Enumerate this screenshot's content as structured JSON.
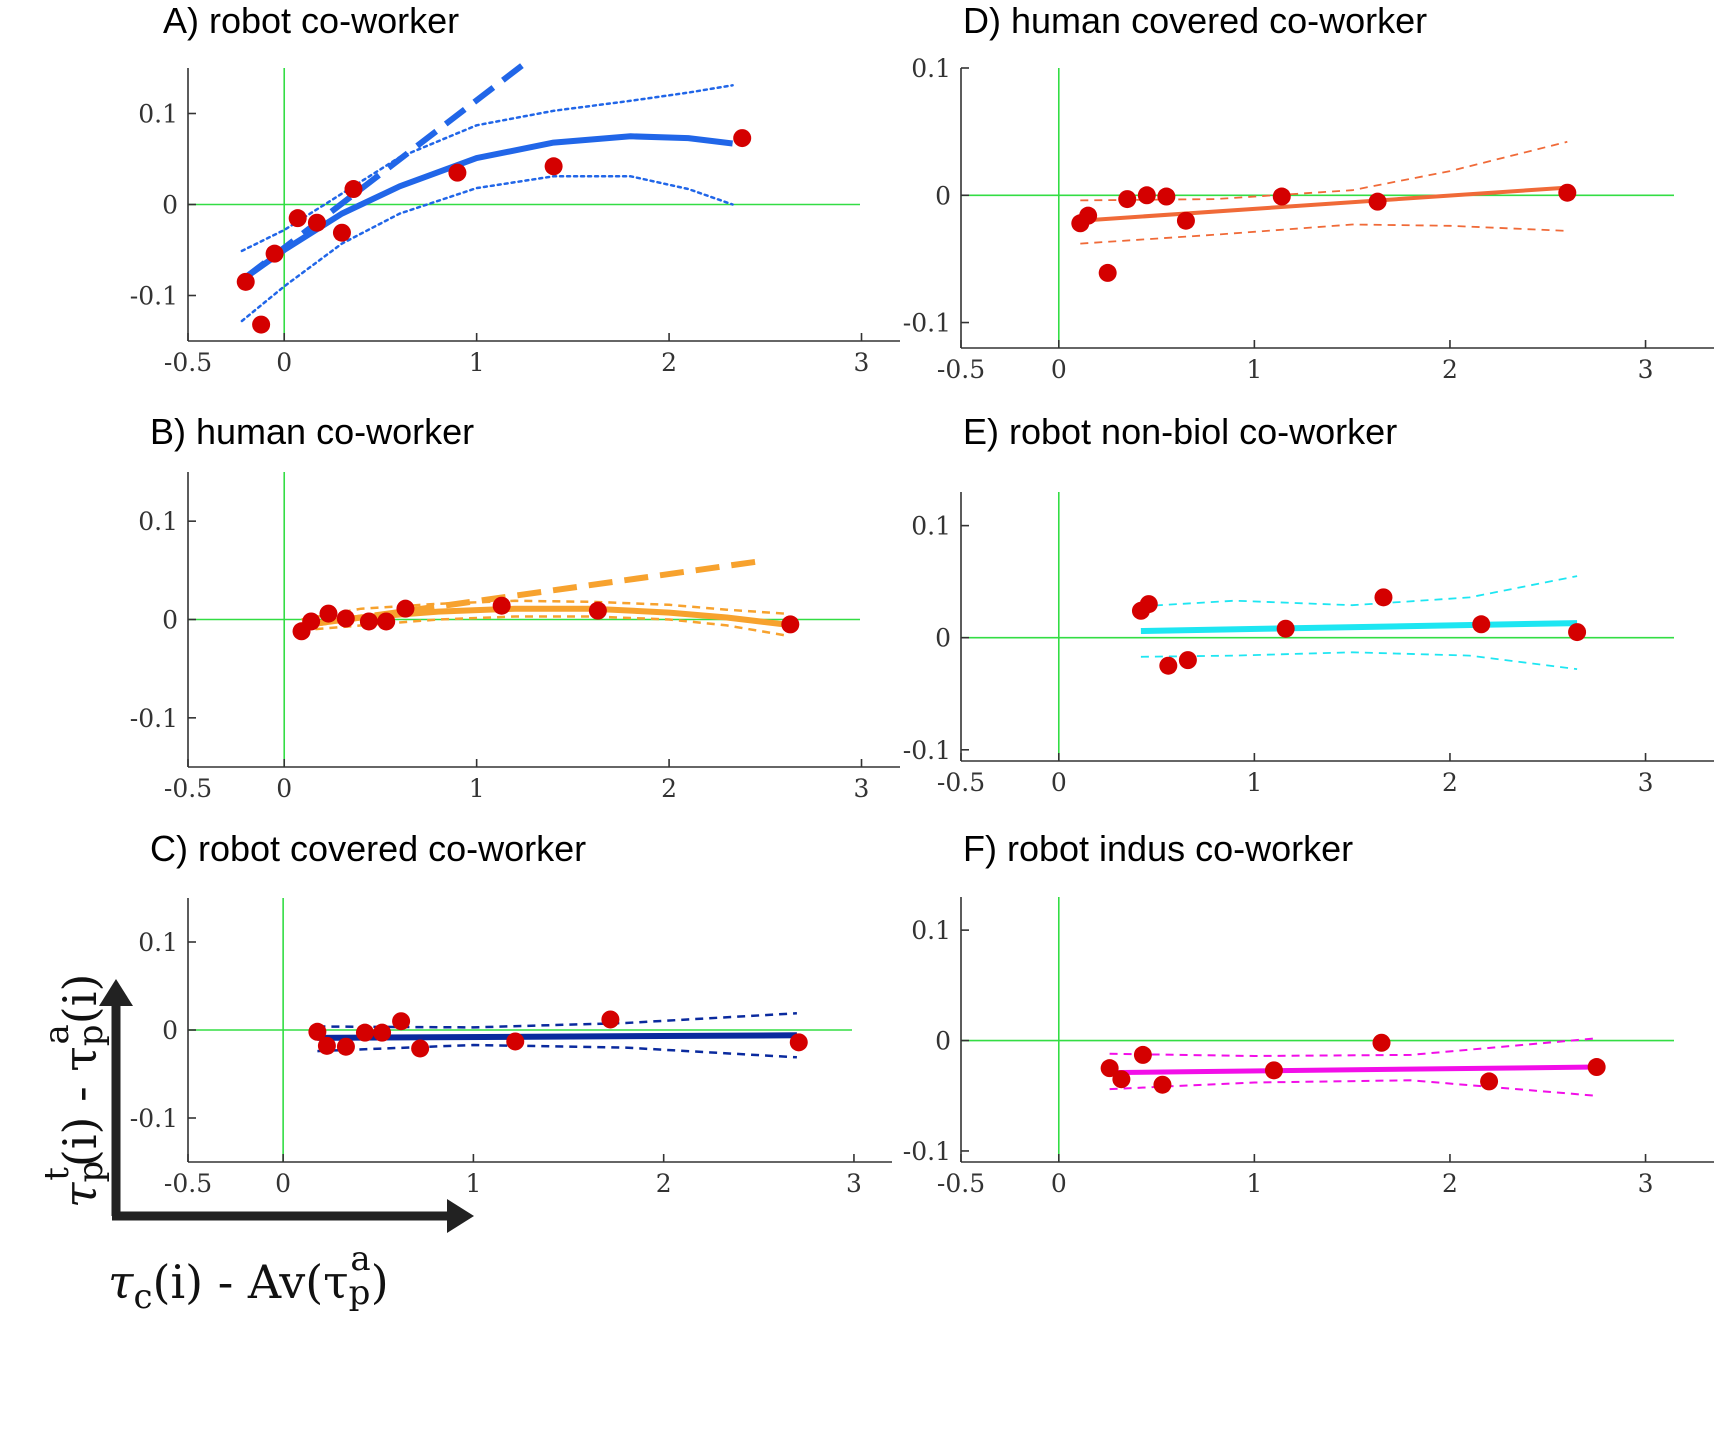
{
  "colors": {
    "point": "#d40000",
    "zero_line": "#33dd44",
    "axis": "#333333",
    "arrow": "#222222"
  },
  "axes_legend": {
    "x_label": {
      "base": "τ",
      "sub": "c",
      "rest": "(i) - Av(τ",
      "sub2": "p",
      "sup2": "a",
      "end": ")"
    },
    "y_label": {
      "base": "τ",
      "sub": "p",
      "sup": "t",
      "rest": "(i) - τ",
      "sub2": "p",
      "sup2": "a",
      "end": "(i)"
    }
  },
  "chart_data": [
    {
      "id": "A",
      "type": "scatter",
      "title": "A)   robot co-worker",
      "color": "#2166e8",
      "xlim": [
        -0.5,
        3.2
      ],
      "ylim": [
        -0.15,
        0.15
      ],
      "xticks": [
        -0.5,
        0,
        1,
        2,
        3
      ],
      "xtick_labels": [
        "-0.5",
        "0",
        "1",
        "2",
        "3"
      ],
      "yticks": [
        -0.1,
        0,
        0.1
      ],
      "ytick_labels": [
        "-0.1",
        "0",
        "0.1"
      ],
      "grid": false,
      "points": [
        {
          "x": -0.2,
          "y": -0.085
        },
        {
          "x": -0.12,
          "y": -0.132
        },
        {
          "x": -0.05,
          "y": -0.054
        },
        {
          "x": 0.07,
          "y": -0.015
        },
        {
          "x": 0.17,
          "y": -0.02
        },
        {
          "x": 0.3,
          "y": -0.031
        },
        {
          "x": 0.36,
          "y": 0.017
        },
        {
          "x": 0.9,
          "y": 0.035
        },
        {
          "x": 1.4,
          "y": 0.042
        },
        {
          "x": 2.38,
          "y": 0.073
        }
      ],
      "fit": {
        "style": "solid",
        "width": 6,
        "x": [
          -0.2,
          0.0,
          0.3,
          0.6,
          1.0,
          1.4,
          1.8,
          2.1,
          2.33
        ],
        "y": [
          -0.08,
          -0.05,
          -0.01,
          0.02,
          0.051,
          0.068,
          0.075,
          0.073,
          0.067
        ]
      },
      "ci_upper": {
        "style": "dotted",
        "width": 2.5,
        "x": [
          -0.22,
          0.0,
          0.3,
          0.6,
          1.0,
          1.4,
          1.8,
          2.1,
          2.33
        ],
        "y": [
          -0.051,
          -0.028,
          0.012,
          0.052,
          0.087,
          0.103,
          0.114,
          0.123,
          0.131
        ]
      },
      "ci_lower": {
        "style": "dotted",
        "width": 2.5,
        "x": [
          -0.22,
          0.0,
          0.3,
          0.6,
          1.0,
          1.4,
          1.8,
          2.1,
          2.33
        ],
        "y": [
          -0.128,
          -0.09,
          -0.043,
          -0.01,
          0.018,
          0.031,
          0.031,
          0.017,
          0.0
        ]
      },
      "extrapolation": {
        "style": "dashed",
        "width": 6,
        "x": [
          -0.2,
          1.25
        ],
        "y": [
          -0.08,
          0.155
        ]
      }
    },
    {
      "id": "B",
      "type": "scatter",
      "title": "B)   human co-worker",
      "color": "#f7a22e",
      "xlim": [
        -0.5,
        3.2
      ],
      "ylim": [
        -0.15,
        0.15
      ],
      "xticks": [
        -0.5,
        0,
        1,
        2,
        3
      ],
      "xtick_labels": [
        "-0.5",
        "0",
        "1",
        "2",
        "3"
      ],
      "yticks": [
        -0.1,
        0,
        0.1
      ],
      "ytick_labels": [
        "-0.1",
        "0",
        "0.1"
      ],
      "grid": false,
      "points": [
        {
          "x": 0.09,
          "y": -0.012
        },
        {
          "x": 0.14,
          "y": -0.002
        },
        {
          "x": 0.23,
          "y": 0.006
        },
        {
          "x": 0.32,
          "y": 0.001
        },
        {
          "x": 0.44,
          "y": -0.002
        },
        {
          "x": 0.53,
          "y": -0.002
        },
        {
          "x": 0.63,
          "y": 0.011
        },
        {
          "x": 1.13,
          "y": 0.014
        },
        {
          "x": 1.63,
          "y": 0.009
        },
        {
          "x": 2.63,
          "y": -0.005
        }
      ],
      "fit": {
        "style": "solid",
        "width": 6,
        "x": [
          0.09,
          0.4,
          0.8,
          1.2,
          1.6,
          2.0,
          2.3,
          2.6
        ],
        "y": [
          -0.006,
          0.002,
          0.008,
          0.011,
          0.011,
          0.007,
          0.002,
          -0.005
        ]
      },
      "ci_upper": {
        "style": "dashed",
        "width": 2.5,
        "x": [
          0.09,
          0.4,
          0.8,
          1.2,
          1.6,
          2.0,
          2.3,
          2.6
        ],
        "y": [
          0.0,
          0.011,
          0.016,
          0.019,
          0.018,
          0.015,
          0.01,
          0.006
        ]
      },
      "ci_lower": {
        "style": "dashed",
        "width": 2.5,
        "x": [
          0.09,
          0.4,
          0.8,
          1.2,
          1.6,
          2.0,
          2.3,
          2.6
        ],
        "y": [
          -0.011,
          -0.006,
          0.0,
          0.003,
          0.003,
          0.0,
          -0.006,
          -0.016
        ]
      },
      "extrapolation": {
        "style": "dashed",
        "width": 6,
        "x": [
          0.1,
          2.5
        ],
        "y": [
          -0.006,
          0.06
        ]
      }
    },
    {
      "id": "C",
      "type": "scatter",
      "title": "C)   robot covered co-worker",
      "color": "#0a2a9e",
      "xlim": [
        -0.5,
        3.2
      ],
      "ylim": [
        -0.15,
        0.15
      ],
      "xticks": [
        -0.5,
        0,
        1,
        2,
        3
      ],
      "xtick_labels": [
        "-0.5",
        "0",
        "1",
        "2",
        "3"
      ],
      "yticks": [
        -0.1,
        0,
        0.1
      ],
      "ytick_labels": [
        "-0.1",
        "0",
        "0.1"
      ],
      "grid": false,
      "points": [
        {
          "x": 0.18,
          "y": -0.002
        },
        {
          "x": 0.23,
          "y": -0.018
        },
        {
          "x": 0.33,
          "y": -0.019
        },
        {
          "x": 0.43,
          "y": -0.003
        },
        {
          "x": 0.52,
          "y": -0.003
        },
        {
          "x": 0.62,
          "y": 0.01
        },
        {
          "x": 0.72,
          "y": -0.021
        },
        {
          "x": 1.22,
          "y": -0.013
        },
        {
          "x": 1.72,
          "y": 0.012
        },
        {
          "x": 2.71,
          "y": -0.014
        }
      ],
      "fit": {
        "style": "solid",
        "width": 6,
        "x": [
          0.18,
          2.7
        ],
        "y": [
          -0.009,
          -0.006
        ]
      },
      "ci_upper": {
        "style": "dashed",
        "width": 2.5,
        "x": [
          0.18,
          1.0,
          1.8,
          2.7
        ],
        "y": [
          0.004,
          0.003,
          0.008,
          0.019
        ]
      },
      "ci_lower": {
        "style": "dashed",
        "width": 2.5,
        "x": [
          0.18,
          1.0,
          1.8,
          2.7
        ],
        "y": [
          -0.024,
          -0.017,
          -0.02,
          -0.031
        ]
      },
      "extrapolation": null
    },
    {
      "id": "D",
      "type": "scatter",
      "title": "D)   human covered co-worker",
      "color": "#f06a38",
      "xlim": [
        -0.5,
        3.35
      ],
      "ylim": [
        -0.12,
        0.1
      ],
      "xticks": [
        -0.5,
        0,
        1,
        2,
        3
      ],
      "xtick_labels": [
        "-0.5",
        "0",
        "1",
        "2",
        "3"
      ],
      "yticks": [
        -0.1,
        0,
        0.1
      ],
      "ytick_labels": [
        "-0.1",
        "0",
        "0.1"
      ],
      "grid": false,
      "points": [
        {
          "x": 0.11,
          "y": -0.022
        },
        {
          "x": 0.15,
          "y": -0.016
        },
        {
          "x": 0.25,
          "y": -0.061
        },
        {
          "x": 0.35,
          "y": -0.003
        },
        {
          "x": 0.45,
          "y": 0.0
        },
        {
          "x": 0.55,
          "y": -0.001
        },
        {
          "x": 0.65,
          "y": -0.02
        },
        {
          "x": 1.14,
          "y": -0.001
        },
        {
          "x": 1.63,
          "y": -0.005
        },
        {
          "x": 2.6,
          "y": 0.002
        }
      ],
      "fit": {
        "style": "solid",
        "width": 4,
        "x": [
          0.11,
          2.6
        ],
        "y": [
          -0.02,
          0.006
        ]
      },
      "ci_upper": {
        "style": "dashed",
        "width": 1.8,
        "x": [
          0.11,
          0.8,
          1.5,
          2.0,
          2.6
        ],
        "y": [
          -0.004,
          -0.003,
          0.004,
          0.019,
          0.042
        ]
      },
      "ci_lower": {
        "style": "dashed",
        "width": 1.8,
        "x": [
          0.11,
          0.8,
          1.5,
          2.0,
          2.6
        ],
        "y": [
          -0.038,
          -0.031,
          -0.023,
          -0.024,
          -0.028
        ]
      },
      "extrapolation": null
    },
    {
      "id": "E",
      "type": "scatter",
      "title": "E)   robot non-biol co-worker",
      "color": "#1ee6f2",
      "xlim": [
        -0.5,
        3.35
      ],
      "ylim": [
        -0.11,
        0.13
      ],
      "xticks": [
        -0.5,
        0,
        1,
        2,
        3
      ],
      "xtick_labels": [
        "-0.5",
        "0",
        "1",
        "2",
        "3"
      ],
      "yticks": [
        -0.1,
        0,
        0.1
      ],
      "ytick_labels": [
        "-0.1",
        "0",
        "0.1"
      ],
      "grid": false,
      "points": [
        {
          "x": 0.42,
          "y": 0.024
        },
        {
          "x": 0.46,
          "y": 0.03
        },
        {
          "x": 0.56,
          "y": -0.025
        },
        {
          "x": 0.66,
          "y": -0.02
        },
        {
          "x": 1.16,
          "y": 0.008
        },
        {
          "x": 1.66,
          "y": 0.036
        },
        {
          "x": 2.16,
          "y": 0.012
        },
        {
          "x": 2.65,
          "y": 0.005
        }
      ],
      "fit": {
        "style": "solid",
        "width": 6,
        "x": [
          0.42,
          2.65
        ],
        "y": [
          0.006,
          0.013
        ]
      },
      "ci_upper": {
        "style": "dashed",
        "width": 1.8,
        "x": [
          0.42,
          0.9,
          1.5,
          2.1,
          2.65
        ],
        "y": [
          0.028,
          0.033,
          0.029,
          0.036,
          0.055
        ]
      },
      "ci_lower": {
        "style": "dashed",
        "width": 1.8,
        "x": [
          0.42,
          0.9,
          1.5,
          2.1,
          2.65
        ],
        "y": [
          -0.017,
          -0.016,
          -0.013,
          -0.016,
          -0.028
        ]
      },
      "extrapolation": null
    },
    {
      "id": "F",
      "type": "scatter",
      "title": "F)   robot indus co-worker",
      "color": "#f20ee8",
      "xlim": [
        -0.5,
        3.35
      ],
      "ylim": [
        -0.11,
        0.13
      ],
      "xticks": [
        -0.5,
        0,
        1,
        2,
        3
      ],
      "xtick_labels": [
        "-0.5",
        "0",
        "1",
        "2",
        "3"
      ],
      "yticks": [
        -0.1,
        0,
        0.1
      ],
      "ytick_labels": [
        "-0.1",
        "0",
        "0.1"
      ],
      "grid": false,
      "points": [
        {
          "x": 0.26,
          "y": -0.025
        },
        {
          "x": 0.32,
          "y": -0.035
        },
        {
          "x": 0.43,
          "y": -0.013
        },
        {
          "x": 0.53,
          "y": -0.04
        },
        {
          "x": 1.1,
          "y": -0.027
        },
        {
          "x": 1.65,
          "y": -0.002
        },
        {
          "x": 2.2,
          "y": -0.037
        },
        {
          "x": 2.75,
          "y": -0.024
        }
      ],
      "fit": {
        "style": "solid",
        "width": 5,
        "x": [
          0.26,
          2.75
        ],
        "y": [
          -0.029,
          -0.024
        ]
      },
      "ci_upper": {
        "style": "dashed",
        "width": 2,
        "x": [
          0.26,
          1.0,
          1.8,
          2.75
        ],
        "y": [
          -0.012,
          -0.014,
          -0.013,
          0.002
        ]
      },
      "ci_lower": {
        "style": "dashed",
        "width": 2,
        "x": [
          0.26,
          1.0,
          1.8,
          2.75
        ],
        "y": [
          -0.044,
          -0.038,
          -0.036,
          -0.05
        ]
      },
      "extrapolation": null
    }
  ]
}
